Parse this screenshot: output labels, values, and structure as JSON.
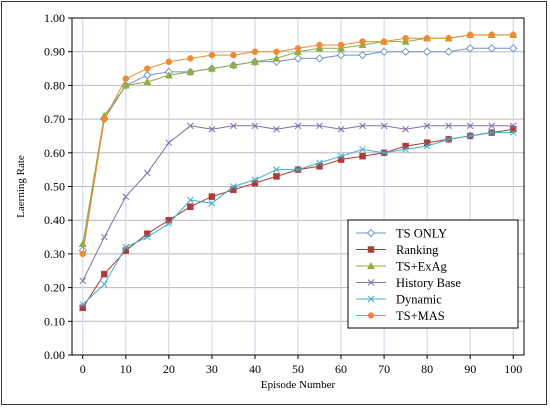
{
  "chart_data": {
    "type": "line",
    "xlabel": "Episode Number",
    "ylabel": "Laerning  Rate",
    "xlim": [
      -2.5,
      102.5
    ],
    "ylim": [
      0,
      1
    ],
    "xticks": [
      0,
      10,
      20,
      30,
      40,
      50,
      60,
      70,
      80,
      90,
      100
    ],
    "yticks": [
      0.0,
      0.1,
      0.2,
      0.3,
      0.4,
      0.5,
      0.6,
      0.7,
      0.8,
      0.9,
      1.0
    ],
    "ytick_labels": [
      "0.00",
      "0.10",
      "0.20",
      "0.30",
      "0.40",
      "0.50",
      "0.60",
      "0.70",
      "0.80",
      "0.90",
      "1.00"
    ],
    "grid": "vertical and horizontal",
    "legend_position": "bottom-right",
    "x": [
      0,
      5,
      10,
      15,
      20,
      25,
      30,
      35,
      40,
      45,
      50,
      55,
      60,
      65,
      70,
      75,
      80,
      85,
      90,
      95,
      100
    ],
    "series": [
      {
        "name": "TS ONLY",
        "marker": "diamond",
        "color": "#6f93c8",
        "values": [
          0.31,
          0.7,
          0.8,
          0.83,
          0.84,
          0.84,
          0.85,
          0.86,
          0.87,
          0.87,
          0.88,
          0.88,
          0.89,
          0.89,
          0.9,
          0.9,
          0.9,
          0.9,
          0.91,
          0.91,
          0.91
        ]
      },
      {
        "name": "Ranking",
        "marker": "square",
        "color": "#b03a3a",
        "values": [
          0.14,
          0.24,
          0.31,
          0.36,
          0.4,
          0.44,
          0.47,
          0.49,
          0.51,
          0.53,
          0.55,
          0.56,
          0.58,
          0.59,
          0.6,
          0.62,
          0.63,
          0.64,
          0.65,
          0.66,
          0.67
        ]
      },
      {
        "name": "TS+ExAg",
        "marker": "triangle",
        "color": "#8fae3f",
        "values": [
          0.33,
          0.71,
          0.8,
          0.81,
          0.83,
          0.84,
          0.85,
          0.86,
          0.87,
          0.88,
          0.9,
          0.91,
          0.91,
          0.92,
          0.93,
          0.93,
          0.94,
          0.94,
          0.95,
          0.95,
          0.95
        ]
      },
      {
        "name": "History Base",
        "marker": "x",
        "color": "#8570a8",
        "values": [
          0.22,
          0.35,
          0.47,
          0.54,
          0.63,
          0.68,
          0.67,
          0.68,
          0.68,
          0.67,
          0.68,
          0.68,
          0.67,
          0.68,
          0.68,
          0.67,
          0.68,
          0.68,
          0.68,
          0.68,
          0.68
        ]
      },
      {
        "name": "Dynamic",
        "marker": "x",
        "color": "#3fb0c8",
        "values": [
          0.15,
          0.21,
          0.32,
          0.35,
          0.39,
          0.46,
          0.45,
          0.5,
          0.52,
          0.55,
          0.55,
          0.57,
          0.59,
          0.61,
          0.6,
          0.61,
          0.62,
          0.64,
          0.65,
          0.66,
          0.66
        ]
      },
      {
        "name": "TS+MAS",
        "marker": "circle",
        "color": "#f08a30",
        "values": [
          0.3,
          0.7,
          0.82,
          0.85,
          0.87,
          0.88,
          0.89,
          0.89,
          0.9,
          0.9,
          0.91,
          0.92,
          0.92,
          0.93,
          0.93,
          0.94,
          0.94,
          0.94,
          0.95,
          0.95,
          0.95
        ]
      }
    ]
  }
}
